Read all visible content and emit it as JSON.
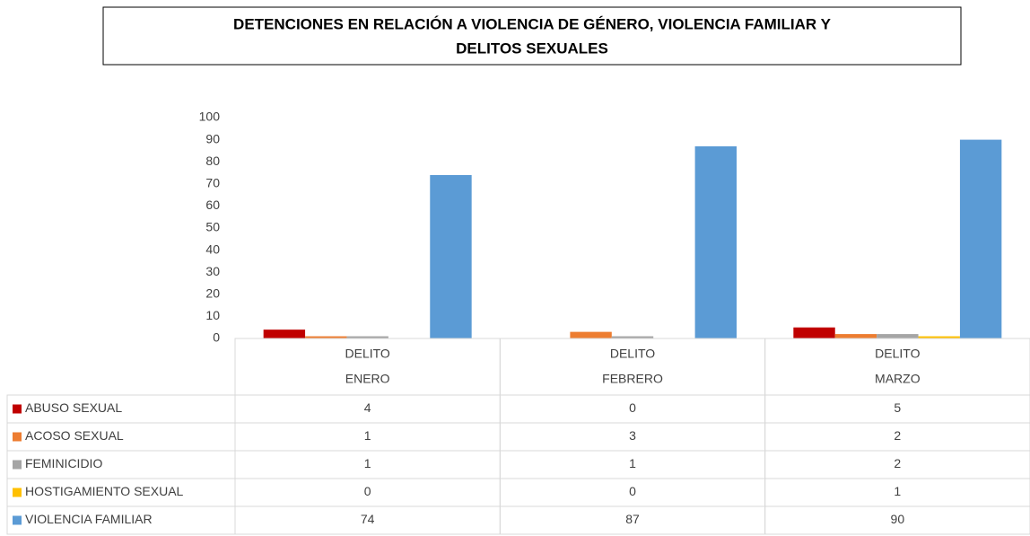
{
  "chart_data": {
    "type": "bar",
    "title": [
      "DETENCIONES EN RELACIÓN A VIOLENCIA DE GÉNERO, VIOLENCIA FAMILIAR Y",
      "DELITOS SEXUALES"
    ],
    "category_groups": [
      "DELITO",
      "DELITO",
      "DELITO"
    ],
    "categories": [
      "ENERO",
      "FEBRERO",
      "MARZO"
    ],
    "series": [
      {
        "name": "ABUSO SEXUAL",
        "color": "#c00000",
        "values": [
          4,
          0,
          5
        ]
      },
      {
        "name": "ACOSO SEXUAL",
        "color": "#ed7d31",
        "values": [
          1,
          3,
          2
        ]
      },
      {
        "name": "FEMINICIDIO",
        "color": "#a5a5a5",
        "values": [
          1,
          1,
          2
        ]
      },
      {
        "name": "HOSTIGAMIENTO SEXUAL",
        "color": "#ffc000",
        "values": [
          0,
          0,
          1
        ]
      },
      {
        "name": "VIOLENCIA FAMILIAR",
        "color": "#5b9bd5",
        "values": [
          74,
          87,
          90
        ]
      }
    ],
    "ylim": [
      0,
      100
    ],
    "yticks": [
      0,
      10,
      20,
      30,
      40,
      50,
      60,
      70,
      80,
      90,
      100
    ],
    "grid": false,
    "data_table": true
  }
}
